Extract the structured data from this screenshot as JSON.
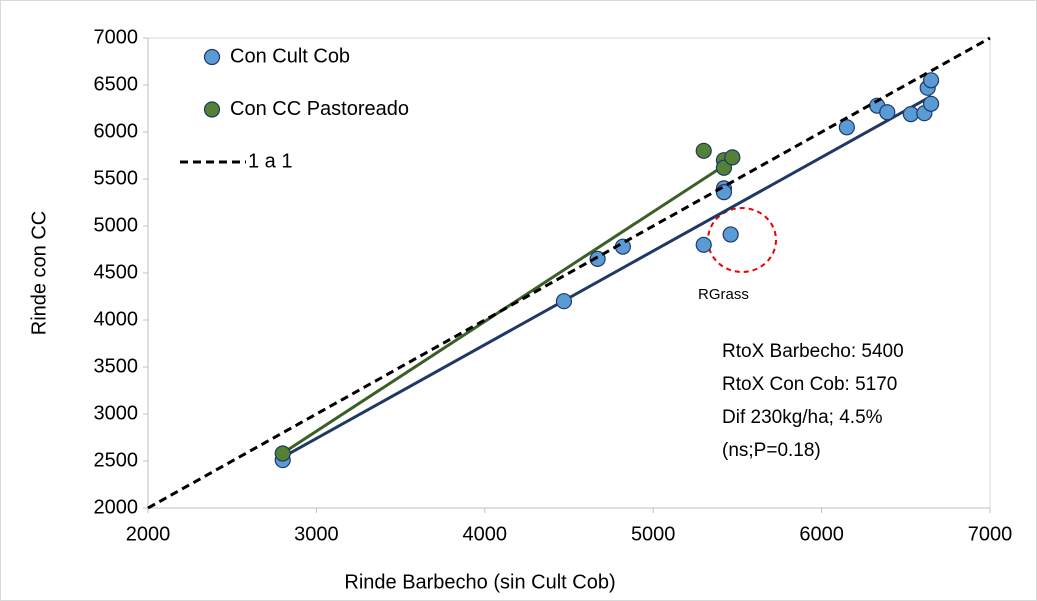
{
  "chart_data": {
    "type": "scatter",
    "x_label": "Rinde Barbecho (sin Cult Cob)",
    "y_label": "Rinde con CC",
    "xlim": [
      2000,
      7000
    ],
    "ylim": [
      2000,
      7000
    ],
    "xticks": [
      2000,
      3000,
      4000,
      5000,
      6000,
      7000
    ],
    "yticks": [
      2000,
      2500,
      3000,
      3500,
      4000,
      4500,
      5000,
      5500,
      6000,
      6500,
      7000
    ],
    "series": [
      {
        "name": "Con Cult Cob",
        "color": "#5b9bd5",
        "x": [
          2800,
          4470,
          4670,
          4820,
          5300,
          5460,
          5420,
          5420,
          6150,
          6330,
          6390,
          6530,
          6610,
          6630,
          6650,
          6650
        ],
        "values": [
          2510,
          4200,
          4650,
          4780,
          4800,
          4910,
          5400,
          5360,
          6050,
          6280,
          6210,
          6190,
          6200,
          6470,
          6550,
          6300
        ]
      },
      {
        "name": "Con CC Pastoreado",
        "color": "#548235",
        "x": [
          2800,
          5300,
          5420,
          5420,
          5470
        ],
        "values": [
          2580,
          5800,
          5700,
          5620,
          5730
        ]
      },
      {
        "name": "1 a 1",
        "color": "#000000",
        "style": "dashed",
        "x": [
          2000,
          7000
        ],
        "values": [
          2000,
          7000
        ]
      }
    ],
    "trendlines": [
      {
        "color": "#203864",
        "x": [
          2780,
          6650
        ],
        "values": [
          2520,
          6380
        ]
      },
      {
        "color": "#3a5f27",
        "x": [
          2780,
          5470
        ],
        "values": [
          2560,
          5700
        ]
      }
    ],
    "annotations": [
      "RGrass",
      "RtoX Barbecho: 5400",
      "RtoX Con Cob: 5170",
      "Dif 230kg/ha;  4.5%",
      "(ns;P=0.18)"
    ]
  }
}
